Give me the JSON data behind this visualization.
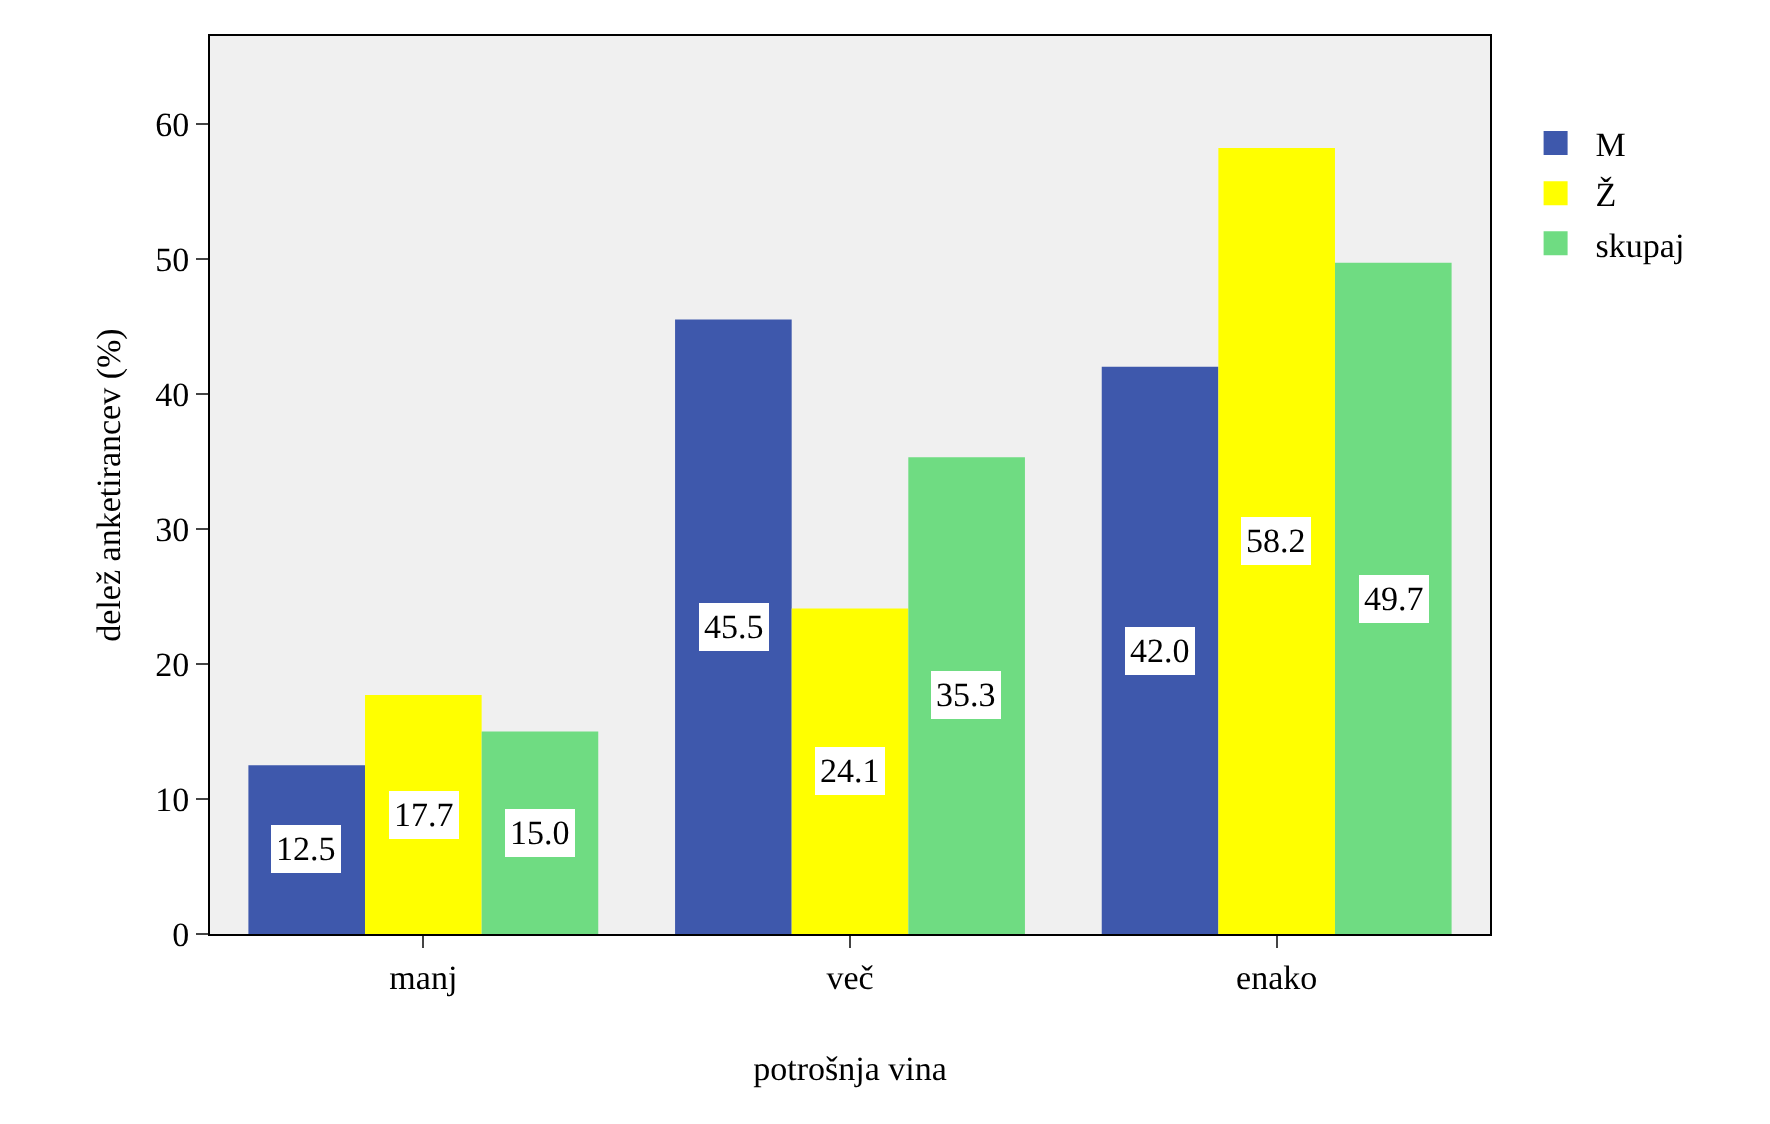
{
  "chart_data": {
    "type": "bar",
    "xlabel": "potrošnja vina",
    "ylabel": "delež anketirancev (%)",
    "categories": [
      "manj",
      "več",
      "enako"
    ],
    "series": [
      {
        "name": "M",
        "color": "#3e58ac",
        "values": [
          12.5,
          45.5,
          42.0
        ],
        "value_labels": [
          "12.5",
          "45.5",
          "42.0"
        ]
      },
      {
        "name": "Ž",
        "color": "#ffff00",
        "values": [
          17.7,
          24.1,
          58.2
        ],
        "value_labels": [
          "17.7",
          "24.1",
          "58.2"
        ]
      },
      {
        "name": "skupaj",
        "color": "#6fdc82",
        "values": [
          15.0,
          35.3,
          49.7
        ],
        "value_labels": [
          "15.0",
          "35.3",
          "49.7"
        ]
      }
    ],
    "ylim": [
      0,
      66.5
    ],
    "yticks": [
      0,
      10,
      20,
      30,
      40,
      50,
      60
    ],
    "grid": false,
    "legend": "right"
  }
}
